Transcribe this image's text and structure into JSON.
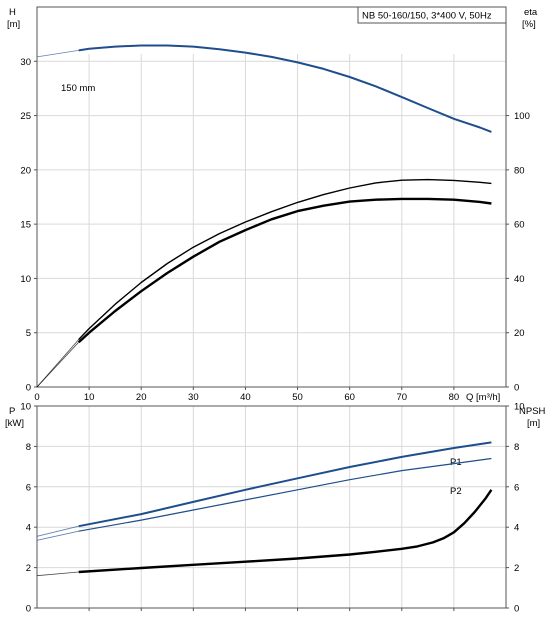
{
  "chart_data": [
    {
      "type": "line",
      "pump_label": "NB 50-160/150, 3*400 V, 50Hz",
      "left_axis": {
        "label": "H",
        "unit": "[m]",
        "ylim": [
          0,
          35
        ],
        "ticks": [
          0,
          5,
          10,
          15,
          20,
          25,
          30
        ]
      },
      "right_axis": {
        "label": "eta",
        "unit": "[%]",
        "ylim": [
          0,
          140
        ],
        "ticks": [
          0,
          20,
          40,
          60,
          80,
          100
        ]
      },
      "x_axis": {
        "label": "Q [m³/h]",
        "xlim": [
          0,
          90
        ],
        "ticks": [
          0,
          10,
          20,
          30,
          40,
          50,
          60,
          70,
          80
        ]
      },
      "grid": true,
      "annotation": "150 mm",
      "series": [
        {
          "axis": "left",
          "color": "#1f4e8c",
          "width": 2,
          "thin_start_x": 0,
          "thick_start_x": 8,
          "x": [
            0,
            8,
            10,
            15,
            20,
            25,
            30,
            35,
            40,
            45,
            50,
            55,
            60,
            65,
            70,
            75,
            80,
            85,
            87.2
          ],
          "y": [
            30.4,
            31.0,
            31.15,
            31.35,
            31.45,
            31.45,
            31.35,
            31.1,
            30.8,
            30.4,
            29.9,
            29.3,
            28.55,
            27.7,
            26.7,
            25.7,
            24.7,
            23.9,
            23.5
          ]
        },
        {
          "axis": "right",
          "color": "#000000",
          "width": 1.4,
          "thin_start_x": 0,
          "thick_start_x": 8,
          "x": [
            0,
            8,
            10,
            15,
            20,
            25,
            30,
            35,
            40,
            45,
            50,
            55,
            60,
            65,
            70,
            75,
            80,
            85,
            87.2
          ],
          "y": [
            0,
            17.5,
            21.5,
            30.5,
            38.5,
            45.5,
            51.5,
            56.5,
            60.8,
            64.6,
            68.0,
            70.9,
            73.3,
            75.2,
            76.2,
            76.4,
            76.1,
            75.4,
            75.0
          ]
        },
        {
          "axis": "right",
          "color": "#000000",
          "width": 2.4,
          "thin_start_x": 0,
          "thick_start_x": 8,
          "x": [
            0,
            8,
            10,
            15,
            20,
            25,
            30,
            35,
            40,
            45,
            50,
            55,
            60,
            65,
            70,
            75,
            80,
            85,
            87.2
          ],
          "y": [
            0,
            16.5,
            20.0,
            28.0,
            35.3,
            42.0,
            48.0,
            53.5,
            57.8,
            61.8,
            64.8,
            66.8,
            68.3,
            69.0,
            69.3,
            69.3,
            69.0,
            68.2,
            67.6
          ]
        }
      ]
    },
    {
      "type": "line",
      "left_axis": {
        "label": "P",
        "unit": "[kW]",
        "ylim": [
          0,
          10
        ],
        "ticks": [
          0,
          2,
          4,
          6,
          8,
          10
        ]
      },
      "right_axis": {
        "label": "NPSH",
        "unit": "[m]",
        "ylim": [
          0,
          10
        ],
        "ticks": [
          0,
          2,
          4,
          6,
          8,
          10
        ]
      },
      "x_axis": {
        "xlim": [
          0,
          90
        ],
        "ticks": []
      },
      "grid": true,
      "series": [
        {
          "name": "P1",
          "axis": "left",
          "color": "#1f4e8c",
          "width": 2,
          "thin_start_x": 0,
          "thick_start_x": 8,
          "x": [
            0,
            8,
            20,
            30,
            40,
            50,
            60,
            70,
            80,
            87.2
          ],
          "y": [
            3.55,
            4.05,
            4.65,
            5.25,
            5.85,
            6.42,
            6.98,
            7.48,
            7.92,
            8.2
          ]
        },
        {
          "name": "P2",
          "axis": "left",
          "color": "#1f4e8c",
          "width": 1.2,
          "thin_start_x": 0,
          "thick_start_x": 8,
          "x": [
            0,
            8,
            20,
            30,
            40,
            50,
            60,
            70,
            80,
            87.2
          ],
          "y": [
            3.35,
            3.8,
            4.35,
            4.85,
            5.35,
            5.85,
            6.35,
            6.8,
            7.15,
            7.4
          ]
        },
        {
          "axis": "right",
          "color": "#000000",
          "width": 2.4,
          "thin_start_x": 0,
          "thick_start_x": 8,
          "x": [
            0,
            8,
            20,
            30,
            40,
            50,
            60,
            65,
            70,
            73,
            76,
            78,
            80,
            82,
            84,
            86,
            87.2
          ],
          "y": [
            1.6,
            1.78,
            1.98,
            2.14,
            2.29,
            2.45,
            2.65,
            2.78,
            2.93,
            3.05,
            3.25,
            3.45,
            3.75,
            4.2,
            4.75,
            5.4,
            5.85
          ]
        }
      ]
    }
  ]
}
